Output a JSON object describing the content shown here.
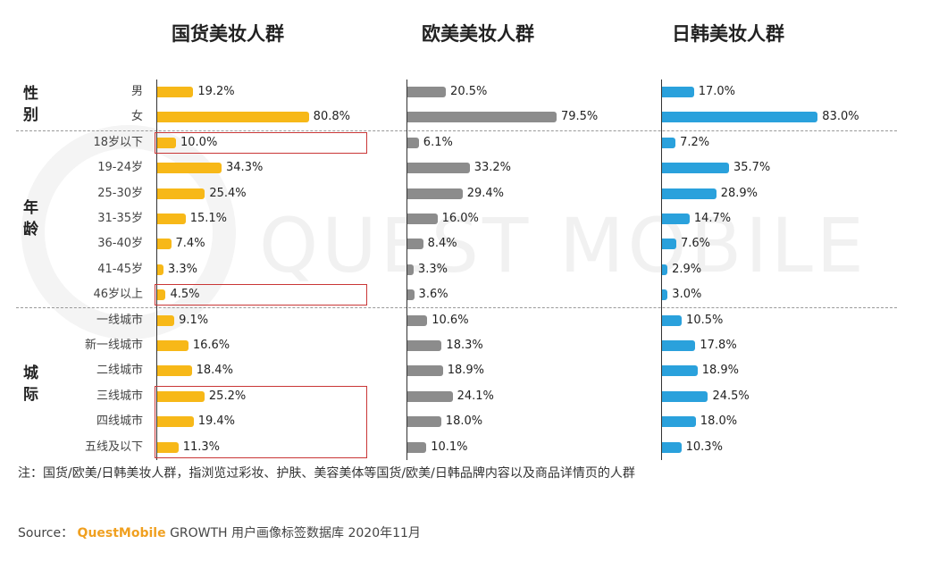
{
  "watermark": "QUEST MOBILE",
  "panel_titles": [
    "国货美妆人群",
    "欧美美妆人群",
    "日韩美妆人群"
  ],
  "groups": [
    {
      "label": "性别",
      "rows": [
        0,
        1
      ]
    },
    {
      "label": "年龄",
      "rows": [
        2,
        8
      ]
    },
    {
      "label": "城际",
      "rows": [
        9,
        14
      ]
    }
  ],
  "colors": {
    "国货": "#f7b818",
    "欧美": "#8c8c8c",
    "日韩": "#2aa1dc",
    "highlight": "#c93636"
  },
  "chart_data": {
    "type": "bar",
    "orientation": "horizontal",
    "unit": "%",
    "categories": [
      "男",
      "女",
      "18岁以下",
      "19-24岁",
      "25-30岁",
      "31-35岁",
      "36-40岁",
      "41-45岁",
      "46岁以上",
      "一线城市",
      "新一线城市",
      "二线城市",
      "三线城市",
      "四线城市",
      "五线及以下"
    ],
    "series": [
      {
        "name": "国货美妆人群",
        "values": [
          19.2,
          80.8,
          10.0,
          34.3,
          25.4,
          15.1,
          7.4,
          3.3,
          4.5,
          9.1,
          16.6,
          18.4,
          25.2,
          19.4,
          11.3
        ],
        "labels": [
          "19.2%",
          "80.8%",
          "10.0%",
          "34.3%",
          "25.4%",
          "15.1%",
          "7.4%",
          "3.3%",
          "4.5%",
          "9.1%",
          "16.6%",
          "18.4%",
          "25.2%",
          "19.4%",
          "11.3%"
        ]
      },
      {
        "name": "欧美美妆人群",
        "values": [
          20.5,
          79.5,
          6.1,
          33.2,
          29.4,
          16.0,
          8.4,
          3.3,
          3.6,
          10.6,
          18.3,
          18.9,
          24.1,
          18.0,
          10.1
        ],
        "labels": [
          "20.5%",
          "79.5%",
          "6.1%",
          "33.2%",
          "29.4%",
          "16.0%",
          "8.4%",
          "3.3%",
          "3.6%",
          "10.6%",
          "18.3%",
          "18.9%",
          "24.1%",
          "18.0%",
          "10.1%"
        ]
      },
      {
        "name": "日韩美妆人群",
        "values": [
          17.0,
          83.0,
          7.2,
          35.7,
          28.9,
          14.7,
          7.6,
          2.9,
          3.0,
          10.5,
          17.8,
          18.9,
          24.5,
          18.0,
          10.3
        ],
        "labels": [
          "17.0%",
          "83.0%",
          "7.2%",
          "35.7%",
          "28.9%",
          "14.7%",
          "7.6%",
          "2.9%",
          "3.0%",
          "10.5%",
          "17.8%",
          "18.9%",
          "24.5%",
          "18.0%",
          "10.3%"
        ]
      }
    ],
    "highlighted_categories": [
      "18岁以下",
      "46岁以上",
      "三线城市",
      "四线城市",
      "五线及以下"
    ],
    "highlighted_series": "国货美妆人群"
  },
  "note": "注：国货/欧美/日韩美妆人群，指浏览过彩妆、护肤、美容美体等国货/欧美/日韩品牌内容以及商品详情页的人群",
  "source": {
    "prefix": "Source：",
    "brand": "QuestMobile",
    "rest": " GROWTH 用户画像标签数据库 2020年11月"
  }
}
